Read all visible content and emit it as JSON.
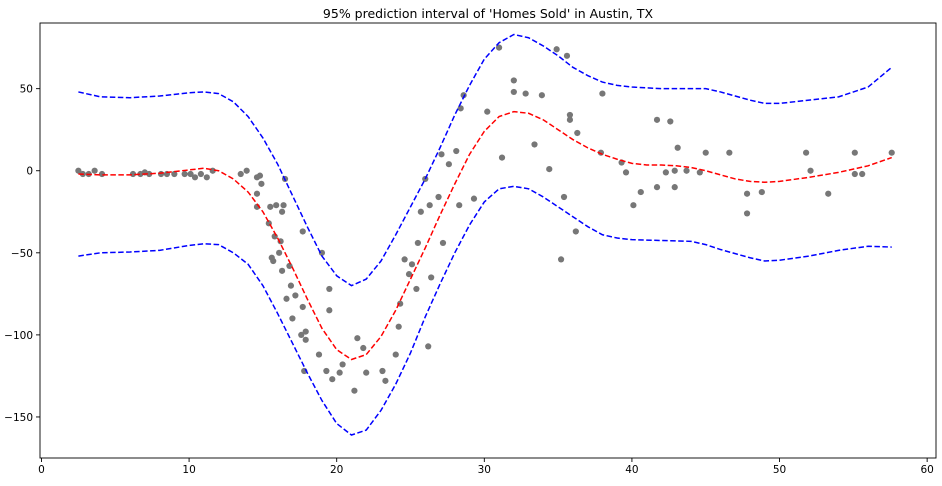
{
  "chart_data": {
    "type": "scatter",
    "title": "95% prediction interval of 'Homes Sold' in Austin, TX",
    "xlabel": "",
    "ylabel": "",
    "xlim": [
      -0.1,
      60.6
    ],
    "ylim": [
      -175,
      90
    ],
    "x_ticks": [
      0,
      10,
      20,
      30,
      40,
      50,
      60
    ],
    "y_ticks": [
      -150,
      -100,
      -50,
      0,
      50
    ],
    "grid": false,
    "legend": "none",
    "series": [
      {
        "type": "scatter",
        "color": "#777777",
        "points": [
          [
            2.5,
            0
          ],
          [
            2.8,
            -2
          ],
          [
            3.2,
            -2
          ],
          [
            3.6,
            0
          ],
          [
            4.1,
            -2
          ],
          [
            6.2,
            -2
          ],
          [
            6.7,
            -2
          ],
          [
            7,
            -1
          ],
          [
            7.3,
            -2
          ],
          [
            8.1,
            -2
          ],
          [
            8.5,
            -2
          ],
          [
            9,
            -2
          ],
          [
            9.7,
            -2
          ],
          [
            10.1,
            -2
          ],
          [
            10.4,
            -4
          ],
          [
            10.8,
            -2
          ],
          [
            11.2,
            -4
          ],
          [
            11.6,
            0
          ],
          [
            13.5,
            -2
          ],
          [
            13.9,
            0
          ],
          [
            14.6,
            -4
          ],
          [
            14.6,
            -14
          ],
          [
            14.6,
            -22
          ],
          [
            14.8,
            -3
          ],
          [
            14.9,
            -8
          ],
          [
            15.4,
            -32
          ],
          [
            15.5,
            -22
          ],
          [
            15.6,
            -53
          ],
          [
            15.7,
            -55
          ],
          [
            15.8,
            -40
          ],
          [
            15.9,
            -21
          ],
          [
            16.1,
            -50
          ],
          [
            16.2,
            -43
          ],
          [
            16.3,
            -25
          ],
          [
            16.3,
            -61
          ],
          [
            16.4,
            -21
          ],
          [
            16.5,
            -5
          ],
          [
            16.6,
            -78
          ],
          [
            16.8,
            -58
          ],
          [
            16.9,
            -70
          ],
          [
            17,
            -90
          ],
          [
            17.2,
            -76
          ],
          [
            17.6,
            -100
          ],
          [
            17.7,
            -83
          ],
          [
            17.7,
            -37
          ],
          [
            17.8,
            -122
          ],
          [
            17.9,
            -98
          ],
          [
            17.9,
            -103
          ],
          [
            18.8,
            -112
          ],
          [
            19,
            -50
          ],
          [
            19.3,
            -122
          ],
          [
            19.5,
            -72
          ],
          [
            19.5,
            -85
          ],
          [
            19.7,
            -127
          ],
          [
            20.2,
            -123
          ],
          [
            20.4,
            -118
          ],
          [
            21.2,
            -134
          ],
          [
            21.4,
            -102
          ],
          [
            21.8,
            -108
          ],
          [
            22,
            -123
          ],
          [
            23.1,
            -122
          ],
          [
            23.3,
            -128
          ],
          [
            24,
            -112
          ],
          [
            24.2,
            -95
          ],
          [
            24.3,
            -81
          ],
          [
            24.6,
            -54
          ],
          [
            24.9,
            -63
          ],
          [
            25.1,
            -57
          ],
          [
            25.4,
            -72
          ],
          [
            25.5,
            -44
          ],
          [
            25.7,
            -25
          ],
          [
            26,
            -5
          ],
          [
            26.2,
            -107
          ],
          [
            26.3,
            -21
          ],
          [
            26.4,
            -65
          ],
          [
            26.9,
            -16
          ],
          [
            27.1,
            10
          ],
          [
            27.2,
            -44
          ],
          [
            27.6,
            4
          ],
          [
            28.1,
            12
          ],
          [
            28.3,
            -21
          ],
          [
            28.4,
            38
          ],
          [
            28.6,
            46
          ],
          [
            29.3,
            -17
          ],
          [
            30.2,
            36
          ],
          [
            31,
            75
          ],
          [
            31.2,
            8
          ],
          [
            32,
            48
          ],
          [
            32,
            55
          ],
          [
            32.8,
            47
          ],
          [
            33.4,
            16
          ],
          [
            33.9,
            46
          ],
          [
            34.4,
            1
          ],
          [
            34.9,
            74
          ],
          [
            35.2,
            -54
          ],
          [
            35.4,
            -16
          ],
          [
            35.6,
            70
          ],
          [
            35.8,
            34
          ],
          [
            35.8,
            31
          ],
          [
            36.2,
            -37
          ],
          [
            36.3,
            23
          ],
          [
            37.9,
            11
          ],
          [
            38,
            47
          ],
          [
            39.3,
            5
          ],
          [
            39.6,
            -1
          ],
          [
            40.1,
            -21
          ],
          [
            40.6,
            -13
          ],
          [
            41.7,
            31
          ],
          [
            41.7,
            -10
          ],
          [
            42.3,
            -1
          ],
          [
            42.6,
            30
          ],
          [
            42.9,
            0
          ],
          [
            42.9,
            -10
          ],
          [
            43.1,
            14
          ],
          [
            43.7,
            0
          ],
          [
            44.6,
            -1
          ],
          [
            45,
            11
          ],
          [
            46.6,
            11
          ],
          [
            47.8,
            -14
          ],
          [
            47.8,
            -26
          ],
          [
            48.8,
            -13
          ],
          [
            51.8,
            11
          ],
          [
            52.1,
            0
          ],
          [
            53.3,
            -14
          ],
          [
            55.1,
            11
          ],
          [
            55.1,
            -2
          ],
          [
            55.6,
            -2
          ],
          [
            57.6,
            11
          ]
        ]
      },
      {
        "type": "line",
        "style": "dashed",
        "color": "#0000ff",
        "points": [
          [
            2.5,
            48
          ],
          [
            4,
            45
          ],
          [
            6,
            44.5
          ],
          [
            8,
            45.5
          ],
          [
            10,
            47.5
          ],
          [
            11,
            48
          ],
          [
            12,
            47
          ],
          [
            13,
            42
          ],
          [
            14,
            33
          ],
          [
            15,
            20
          ],
          [
            16,
            4
          ],
          [
            17,
            -15
          ],
          [
            18,
            -34
          ],
          [
            19,
            -52
          ],
          [
            20,
            -64
          ],
          [
            21,
            -70
          ],
          [
            22,
            -66
          ],
          [
            23,
            -55
          ],
          [
            24,
            -39
          ],
          [
            25,
            -22
          ],
          [
            26,
            -5
          ],
          [
            27,
            14
          ],
          [
            28,
            34
          ],
          [
            29,
            52
          ],
          [
            30,
            68
          ],
          [
            31,
            78
          ],
          [
            32,
            83
          ],
          [
            33,
            81
          ],
          [
            34,
            76
          ],
          [
            35,
            70
          ],
          [
            36,
            63
          ],
          [
            37,
            58
          ],
          [
            38,
            54
          ],
          [
            39,
            52
          ],
          [
            40,
            51
          ],
          [
            42,
            50
          ],
          [
            44,
            50
          ],
          [
            45,
            50
          ],
          [
            46,
            48
          ],
          [
            48,
            43
          ],
          [
            49,
            41
          ],
          [
            50,
            41
          ],
          [
            52,
            43
          ],
          [
            54,
            45
          ],
          [
            56,
            51
          ],
          [
            57.6,
            63
          ]
        ]
      },
      {
        "type": "line",
        "style": "dashed",
        "color": "#ff0000",
        "points": [
          [
            2.5,
            -2
          ],
          [
            4,
            -2.5
          ],
          [
            6,
            -2.5
          ],
          [
            8,
            -1.5
          ],
          [
            10,
            0.5
          ],
          [
            11,
            1.5
          ],
          [
            12,
            0
          ],
          [
            13,
            -5
          ],
          [
            14,
            -13
          ],
          [
            15,
            -25
          ],
          [
            16,
            -41
          ],
          [
            17,
            -59
          ],
          [
            18,
            -78
          ],
          [
            19,
            -96
          ],
          [
            20,
            -109
          ],
          [
            21,
            -115
          ],
          [
            22,
            -112
          ],
          [
            23,
            -101
          ],
          [
            24,
            -85
          ],
          [
            25,
            -66
          ],
          [
            26,
            -47
          ],
          [
            27,
            -27
          ],
          [
            28,
            -8
          ],
          [
            29,
            10
          ],
          [
            30,
            24
          ],
          [
            31,
            33
          ],
          [
            32,
            36
          ],
          [
            33,
            35
          ],
          [
            34,
            31
          ],
          [
            35,
            25
          ],
          [
            36,
            19
          ],
          [
            37,
            14
          ],
          [
            38,
            10
          ],
          [
            39,
            7
          ],
          [
            40,
            4.5
          ],
          [
            41,
            3.5
          ],
          [
            42,
            3.5
          ],
          [
            43,
            3
          ],
          [
            44,
            2
          ],
          [
            45,
            0
          ],
          [
            46,
            -2.5
          ],
          [
            47,
            -5
          ],
          [
            48,
            -6.5
          ],
          [
            49,
            -7
          ],
          [
            50,
            -6.5
          ],
          [
            52,
            -4
          ],
          [
            54,
            -1
          ],
          [
            56,
            3
          ],
          [
            57.6,
            8
          ]
        ]
      },
      {
        "type": "line",
        "style": "dashed",
        "color": "#0000ff",
        "points": [
          [
            2.5,
            -52
          ],
          [
            4,
            -50
          ],
          [
            6,
            -49.5
          ],
          [
            8,
            -48.5
          ],
          [
            10,
            -45.5
          ],
          [
            11,
            -44.5
          ],
          [
            12,
            -45
          ],
          [
            13,
            -50
          ],
          [
            14,
            -57
          ],
          [
            15,
            -70
          ],
          [
            16,
            -87
          ],
          [
            17,
            -105
          ],
          [
            18,
            -123
          ],
          [
            19,
            -140
          ],
          [
            20,
            -154
          ],
          [
            21,
            -161
          ],
          [
            22,
            -158
          ],
          [
            23,
            -146
          ],
          [
            24,
            -130
          ],
          [
            25,
            -111
          ],
          [
            26,
            -89
          ],
          [
            27,
            -69
          ],
          [
            28,
            -50
          ],
          [
            29,
            -33
          ],
          [
            30,
            -19
          ],
          [
            31,
            -11
          ],
          [
            32,
            -9.5
          ],
          [
            33,
            -11
          ],
          [
            34,
            -16
          ],
          [
            35,
            -22
          ],
          [
            36,
            -28
          ],
          [
            37,
            -34
          ],
          [
            38,
            -39
          ],
          [
            39,
            -41
          ],
          [
            40,
            -42
          ],
          [
            42,
            -42.5
          ],
          [
            44,
            -43
          ],
          [
            45,
            -45
          ],
          [
            46,
            -48
          ],
          [
            48,
            -53
          ],
          [
            49,
            -55
          ],
          [
            50,
            -54.5
          ],
          [
            52,
            -52
          ],
          [
            54,
            -48.5
          ],
          [
            56,
            -46
          ],
          [
            57.6,
            -46.5
          ]
        ]
      }
    ]
  }
}
